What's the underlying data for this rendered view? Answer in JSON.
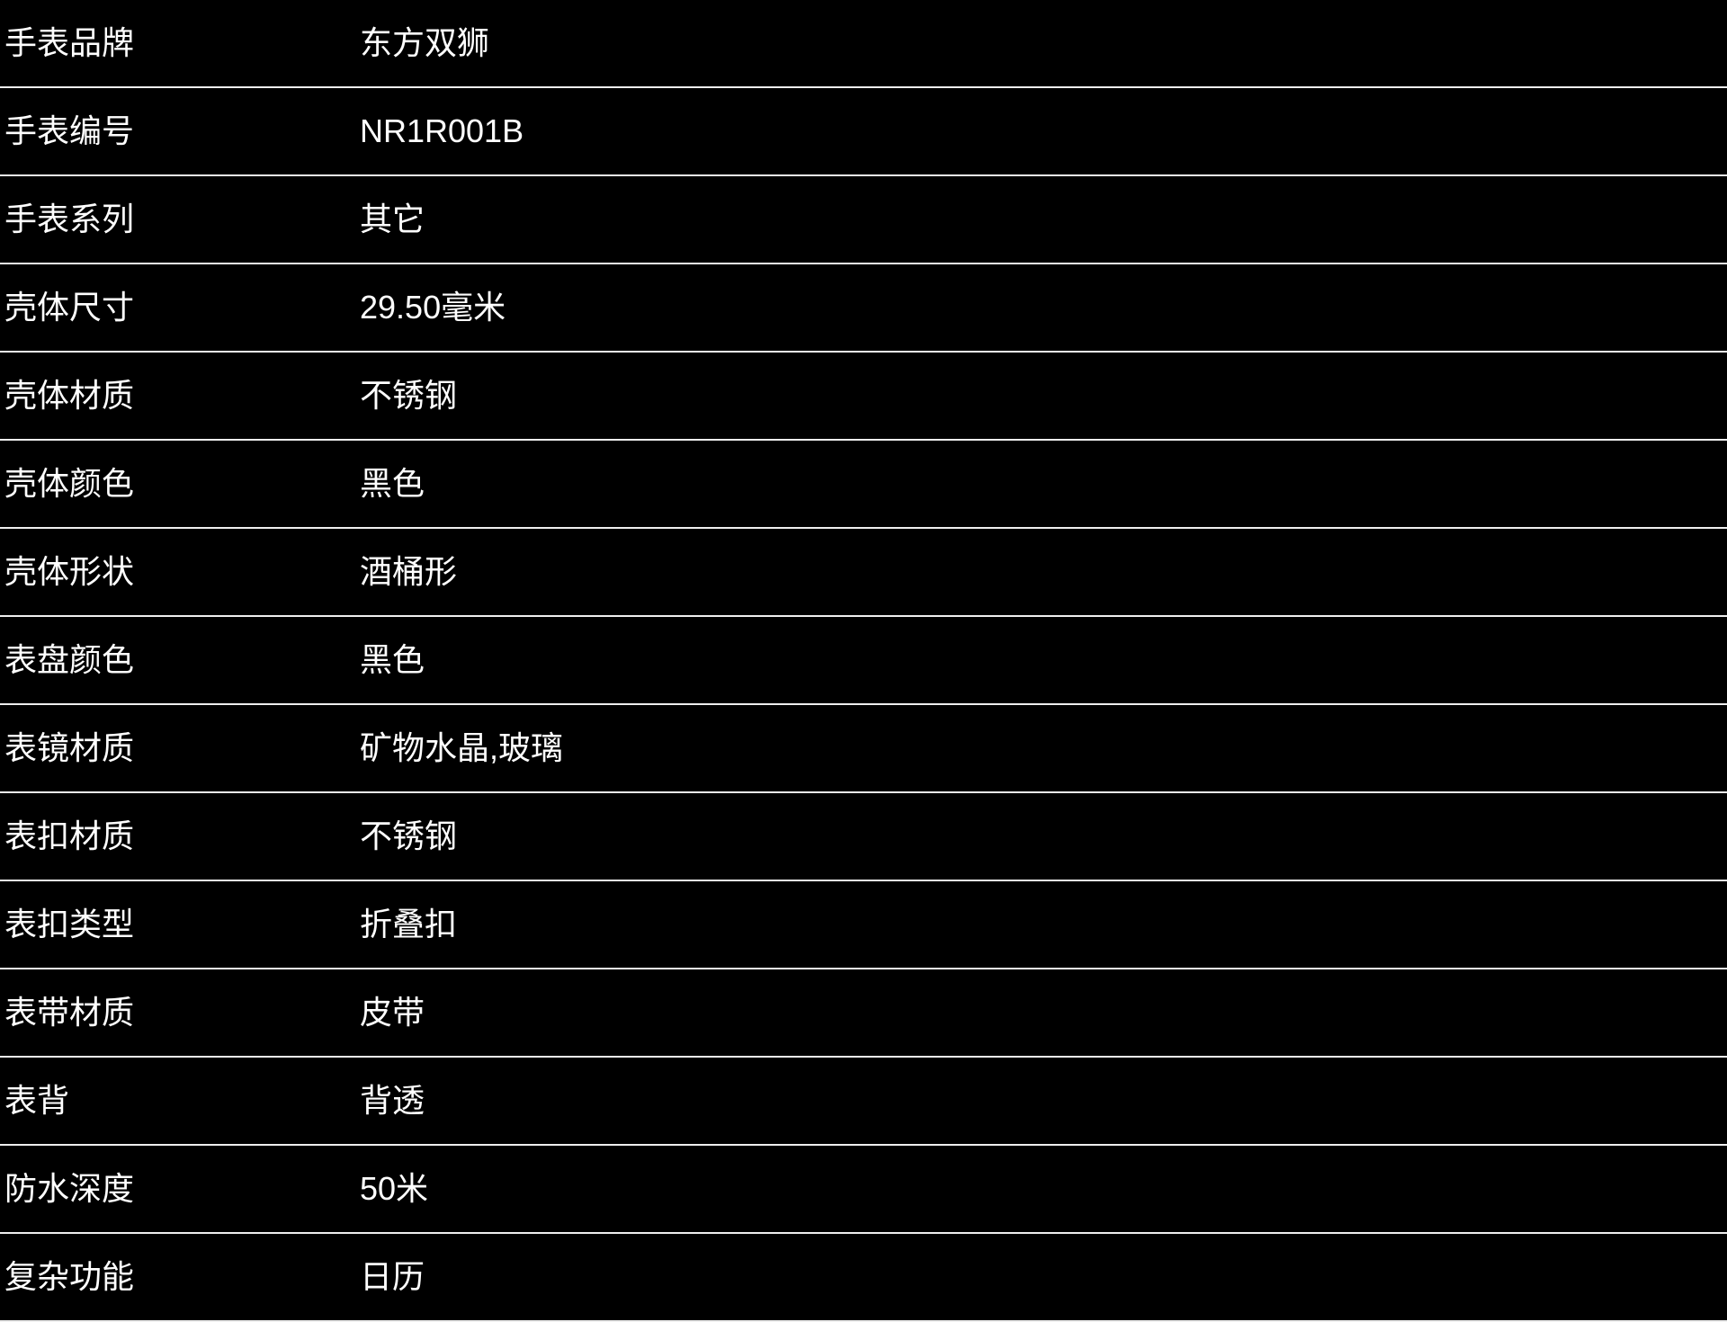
{
  "colors": {
    "background": "#000000",
    "text": "#ffffff",
    "divider": "#eeeeee"
  },
  "spec_table": {
    "rows": [
      {
        "label": "手表品牌",
        "value": "东方双狮"
      },
      {
        "label": "手表编号",
        "value": "NR1R001B"
      },
      {
        "label": "手表系列",
        "value": "其它"
      },
      {
        "label": "壳体尺寸",
        "value": "29.50毫米"
      },
      {
        "label": "壳体材质",
        "value": "不锈钢"
      },
      {
        "label": "壳体颜色",
        "value": "黑色"
      },
      {
        "label": "壳体形状",
        "value": "酒桶形"
      },
      {
        "label": "表盘颜色",
        "value": "黑色"
      },
      {
        "label": "表镜材质",
        "value": "矿物水晶,玻璃"
      },
      {
        "label": "表扣材质",
        "value": "不锈钢"
      },
      {
        "label": "表扣类型",
        "value": "折叠扣"
      },
      {
        "label": "表带材质",
        "value": "皮带"
      },
      {
        "label": "表背",
        "value": "背透"
      },
      {
        "label": "防水深度",
        "value": "50米"
      },
      {
        "label": "复杂功能",
        "value": "日历"
      }
    ]
  }
}
